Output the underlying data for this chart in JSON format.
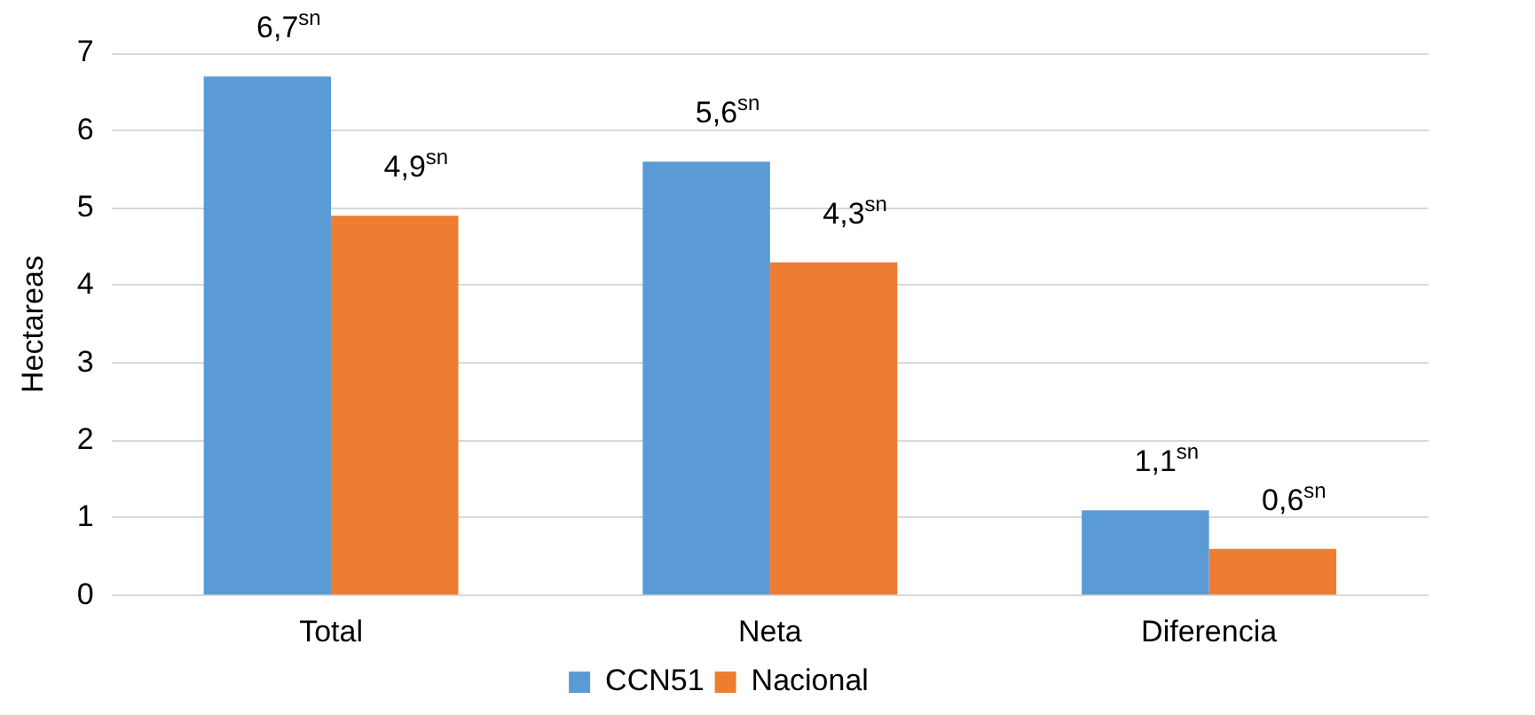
{
  "chart_data": {
    "type": "bar",
    "ylabel": "Hectareas",
    "categories": [
      "Total",
      "Neta",
      "Diferencia"
    ],
    "series": [
      {
        "name": "CCN51",
        "color": "#5b9bd5",
        "values": [
          6.7,
          5.6,
          1.1
        ],
        "value_labels": [
          "6,7$^{sn}$",
          "5,6$^{sn}$",
          "1,1$^{sn}$"
        ]
      },
      {
        "name": "Nacional",
        "color": "#ed7d31",
        "values": [
          4.9,
          4.3,
          0.6
        ],
        "value_labels": [
          "4,9$^{sn}$",
          "4,3$^{sn}$",
          "0,6$^{sn}$"
        ]
      }
    ],
    "ylim": [
      0,
      7
    ],
    "yticks": [
      0,
      1,
      2,
      3,
      4,
      5,
      6,
      7
    ],
    "grid": "y",
    "legend": "bottom"
  }
}
